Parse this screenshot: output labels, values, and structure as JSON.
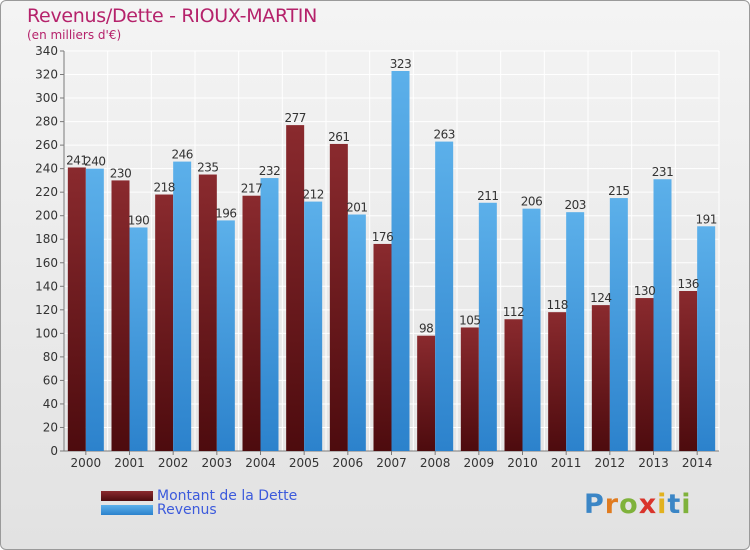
{
  "title": "Revenus/Dette - RIOUX-MARTIN",
  "subtitle": "(en milliers d'€)",
  "logo": {
    "text": "Proxiti"
  },
  "colors": {
    "debt": "#7a1e22",
    "debt_dark": "#4d0b0e",
    "revenue": "#55a9e6",
    "revenue_dark": "#2e86cf",
    "title": "#b5226b",
    "legend_text": "#3c5adc"
  },
  "chart_data": {
    "type": "bar",
    "categories": [
      "2000",
      "2001",
      "2002",
      "2003",
      "2004",
      "2005",
      "2006",
      "2007",
      "2008",
      "2009",
      "2010",
      "2011",
      "2012",
      "2013",
      "2014"
    ],
    "series": [
      {
        "name": "Montant de la Dette",
        "values": [
          241,
          230,
          218,
          235,
          217,
          277,
          261,
          176,
          98,
          105,
          112,
          118,
          124,
          130,
          136
        ]
      },
      {
        "name": "Revenus",
        "values": [
          240,
          190,
          246,
          196,
          232,
          212,
          201,
          323,
          263,
          211,
          206,
          203,
          215,
          231,
          191
        ]
      }
    ],
    "ylim": [
      0,
      340
    ],
    "yticks": [
      0,
      20,
      40,
      60,
      80,
      100,
      120,
      140,
      160,
      180,
      200,
      220,
      240,
      260,
      280,
      300,
      320,
      340
    ],
    "grid": true,
    "legend_position": "bottom-left"
  }
}
